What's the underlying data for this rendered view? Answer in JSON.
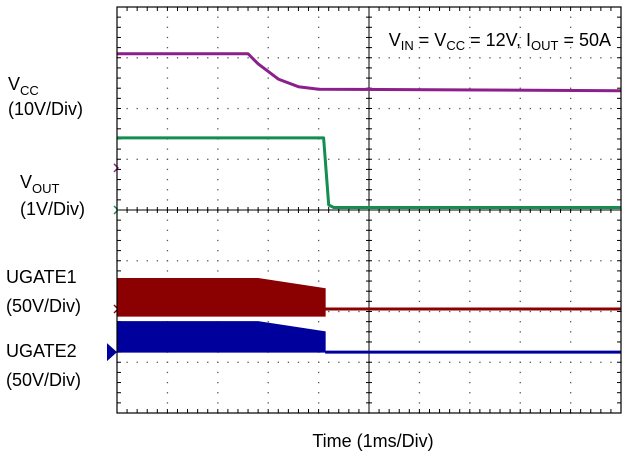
{
  "chart_data": {
    "type": "line",
    "annotation": {
      "parts": [
        {
          "text": "V",
          "sub": "IN"
        },
        {
          "text": " = V",
          "sub": "CC"
        },
        {
          "text": " = 12V, I",
          "sub": "OUT"
        },
        {
          "text": " = 50A",
          "sub": ""
        }
      ]
    },
    "xlabel": "Time (1ms/Div)",
    "x_divisions": 10,
    "y_divisions": 8,
    "x_unit": "ms",
    "xlim": [
      0,
      10
    ],
    "grid": true,
    "channels": [
      {
        "id": "vcc",
        "label_main": "V",
        "label_sub": "CC",
        "scale": "(10V/Div)",
        "color": "#8b1f8b",
        "marker_color": "#8b1f8b",
        "ground_div": 4.83,
        "points": [
          [
            0,
            2.25
          ],
          [
            2.6,
            2.25
          ],
          [
            2.8,
            2.05
          ],
          [
            3.2,
            1.75
          ],
          [
            3.6,
            1.6
          ],
          [
            4.0,
            1.55
          ],
          [
            10,
            1.52
          ]
        ]
      },
      {
        "id": "vout",
        "label_main": "V",
        "label_sub": "OUT",
        "scale": "(1V/Div)",
        "color": "#138e4f",
        "marker_color": "#138e4f",
        "ground_div": 4.0,
        "points": [
          [
            0,
            1.42
          ],
          [
            4.1,
            1.42
          ],
          [
            4.2,
            0.1
          ],
          [
            4.3,
            0.05
          ],
          [
            10,
            0.05
          ]
        ]
      },
      {
        "id": "ugate1",
        "label_main": "UGATE1",
        "label_sub": "",
        "scale": "(50V/Div)",
        "color": "#8b0000",
        "marker_color": "#8b0000",
        "ground_div": 2.05,
        "switching": {
          "until": 4.13,
          "top_start": 0.6,
          "top_end": 0.4,
          "bottom": -0.14
        }
      },
      {
        "id": "ugate2",
        "label_main": "UGATE2",
        "label_sub": "",
        "scale": "(50V/Div)",
        "color": "#00009c",
        "marker_color": "#00009c",
        "ground_div": 1.2,
        "switching": {
          "until": 4.13,
          "top_start": 0.6,
          "top_end": 0.4,
          "bottom": 0.0
        }
      }
    ]
  }
}
